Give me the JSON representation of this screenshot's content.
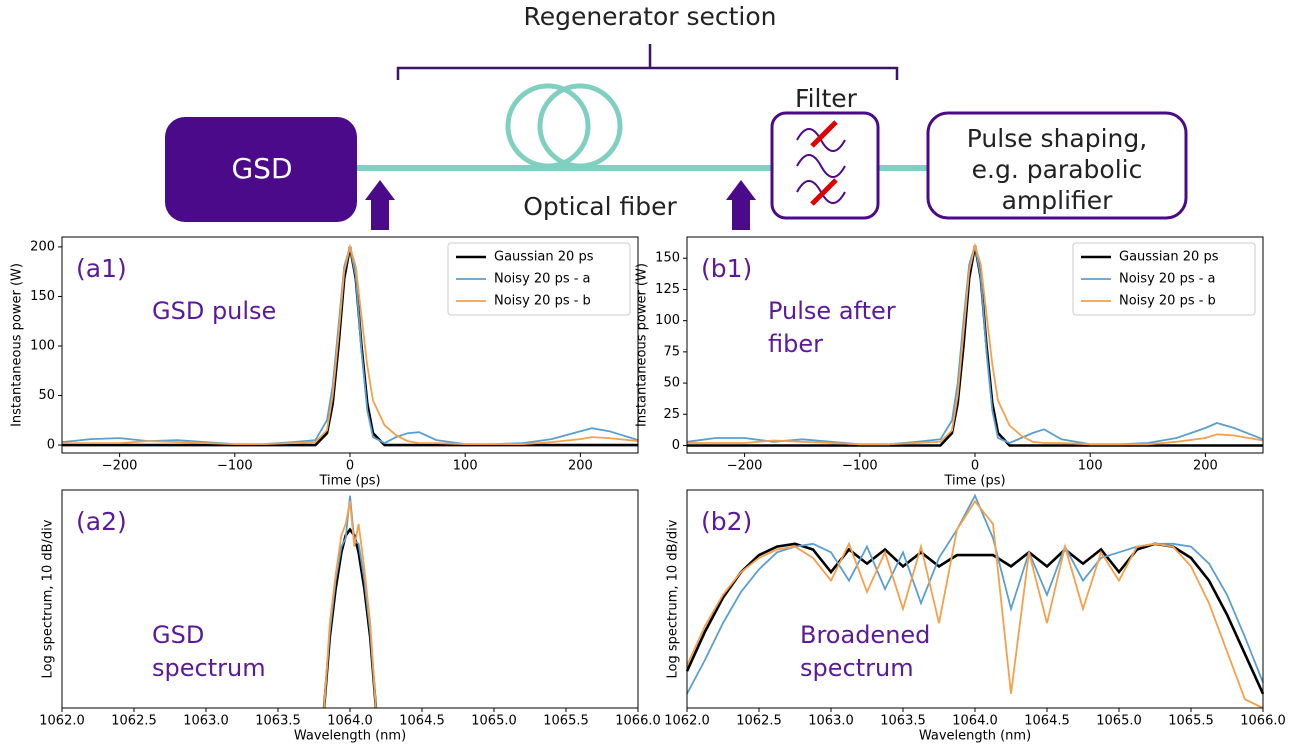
{
  "diagram": {
    "section": "Regenerator section",
    "source": "GSD",
    "filter": "Filter",
    "fiber": "Optical fiber",
    "shaper": [
      "Pulse shaping,",
      "e.g. parabolic",
      "amplifier"
    ]
  },
  "chart_data": [
    {
      "type": "line",
      "xlabel": "Time (ps)",
      "ylabel": "Instantaneous power (W)",
      "annotations": [
        "(a1)",
        "GSD pulse"
      ],
      "legend": "upper right",
      "xlim": [
        -250,
        250
      ],
      "ylim": [
        -8,
        210
      ],
      "xticks": [
        {
          "value": -200,
          "label": "−200"
        },
        {
          "value": -100,
          "label": "−100"
        },
        0,
        100,
        200
      ],
      "yticks": [
        0,
        50,
        100,
        150,
        200
      ],
      "x": [
        -250,
        -225,
        -200,
        -175,
        -150,
        -125,
        -100,
        -75,
        -50,
        -30,
        -20,
        -15,
        -10,
        -5,
        0,
        5,
        10,
        15,
        20,
        30,
        40,
        50,
        60,
        75,
        100,
        125,
        150,
        175,
        200,
        210,
        225,
        250
      ],
      "series": [
        {
          "name": "Gaussian 20 ps",
          "color": "#000000",
          "values": [
            0,
            0,
            0,
            0,
            0,
            0,
            0,
            0,
            0,
            0,
            12,
            42,
            100,
            168,
            200,
            168,
            100,
            42,
            12,
            0,
            0,
            0,
            0,
            0,
            0,
            0,
            0,
            0,
            0,
            0,
            0,
            0
          ]
        },
        {
          "name": "Noisy 20 ps - a",
          "color": "#5a9fd0",
          "values": [
            3,
            6,
            7,
            4,
            5,
            3,
            1,
            1,
            3,
            5,
            25,
            60,
            120,
            180,
            200,
            170,
            95,
            35,
            8,
            2,
            8,
            12,
            13,
            5,
            1,
            1,
            2,
            6,
            14,
            17,
            14,
            5
          ]
        },
        {
          "name": "Noisy 20 ps - b",
          "color": "#f5a04a",
          "values": [
            2,
            2,
            2,
            4,
            3,
            2,
            1,
            1,
            2,
            3,
            15,
            50,
            110,
            175,
            200,
            180,
            130,
            80,
            45,
            20,
            10,
            4,
            2,
            2,
            1,
            1,
            1,
            3,
            6,
            8,
            7,
            4
          ]
        }
      ]
    },
    {
      "type": "line",
      "xlabel": "Time (ps)",
      "ylabel": "Instantaneous power (W)",
      "annotations": [
        "(b1)",
        "Pulse after",
        "fiber"
      ],
      "legend": "upper right",
      "xlim": [
        -250,
        250
      ],
      "ylim": [
        -6,
        167
      ],
      "xticks": [
        {
          "value": -200,
          "label": "−200"
        },
        {
          "value": -100,
          "label": "−100"
        },
        0,
        100,
        200
      ],
      "yticks": [
        0,
        25,
        50,
        75,
        100,
        125,
        150
      ],
      "x": [
        -250,
        -225,
        -200,
        -175,
        -150,
        -125,
        -100,
        -75,
        -50,
        -30,
        -20,
        -15,
        -10,
        -5,
        0,
        5,
        10,
        15,
        20,
        30,
        40,
        50,
        60,
        75,
        100,
        125,
        150,
        175,
        200,
        210,
        225,
        250
      ],
      "series": [
        {
          "name": "Gaussian 20 ps",
          "color": "#000000",
          "values": [
            0,
            0,
            0,
            0,
            0,
            0,
            0,
            0,
            0,
            0,
            10,
            34,
            80,
            134,
            160,
            134,
            80,
            34,
            10,
            0,
            0,
            0,
            0,
            0,
            0,
            0,
            0,
            0,
            0,
            0,
            0,
            0
          ]
        },
        {
          "name": "Noisy 20 ps - a",
          "color": "#5a9fd0",
          "values": [
            3,
            6,
            6,
            3,
            5,
            3,
            1,
            1,
            3,
            5,
            20,
            50,
            100,
            145,
            160,
            135,
            75,
            28,
            6,
            2,
            6,
            10,
            13,
            5,
            1,
            1,
            2,
            6,
            14,
            18,
            14,
            5
          ]
        },
        {
          "name": "Noisy 20 ps - b",
          "color": "#f5a04a",
          "values": [
            2,
            2,
            2,
            4,
            3,
            2,
            1,
            1,
            2,
            3,
            12,
            40,
            90,
            140,
            160,
            145,
            105,
            65,
            36,
            16,
            8,
            3,
            2,
            2,
            1,
            1,
            1,
            3,
            6,
            9,
            8,
            4
          ]
        }
      ]
    },
    {
      "type": "line",
      "xlabel": "Wavelength (nm)",
      "ylabel": "Log spectrum, 10 dB/div",
      "annotations": [
        "(a2)",
        "GSD",
        "spectrum"
      ],
      "xlim": [
        1062,
        1066
      ],
      "ylim": [
        -75,
        2
      ],
      "xticks": [
        {
          "value": 1062,
          "label": "1062.0"
        },
        {
          "value": 1062.5,
          "label": "1062.5"
        },
        {
          "value": 1063,
          "label": "1063.0"
        },
        {
          "value": 1063.5,
          "label": "1063.5"
        },
        {
          "value": 1064,
          "label": "1064.0"
        },
        {
          "value": 1064.5,
          "label": "1064.5"
        },
        {
          "value": 1065,
          "label": "1065.0"
        },
        {
          "value": 1065.5,
          "label": "1065.5"
        },
        {
          "value": 1066,
          "label": "1066.0"
        }
      ],
      "x": [
        1063.82,
        1063.86,
        1063.9,
        1063.94,
        1063.97,
        1064.0,
        1064.03,
        1064.06,
        1064.1,
        1064.14,
        1064.18
      ],
      "series": [
        {
          "color": "#000000",
          "values": [
            -75,
            -50,
            -33,
            -20,
            -14,
            -12,
            -14,
            -20,
            -33,
            -50,
            -75
          ]
        },
        {
          "color": "#5a9fd0",
          "values": [
            -75,
            -48,
            -30,
            -18,
            -15,
            0,
            -16,
            -17,
            -30,
            -48,
            -75
          ]
        },
        {
          "color": "#f5a04a",
          "values": [
            -75,
            -45,
            -28,
            -14,
            -10,
            -2,
            -18,
            -10,
            -26,
            -45,
            -75
          ]
        }
      ]
    },
    {
      "type": "line",
      "xlabel": "Wavelength (nm)",
      "ylabel": "Log spectrum, 10 dB/div",
      "annotations": [
        "(b2)",
        "Broadened",
        "spectrum"
      ],
      "xlim": [
        1062,
        1066
      ],
      "ylim": [
        -75,
        2
      ],
      "xticks": [
        {
          "value": 1062,
          "label": "1062.0"
        },
        {
          "value": 1062.5,
          "label": "1062.5"
        },
        {
          "value": 1063,
          "label": "1063.0"
        },
        {
          "value": 1063.5,
          "label": "1063.5"
        },
        {
          "value": 1064,
          "label": "1064.0"
        },
        {
          "value": 1064.5,
          "label": "1064.5"
        },
        {
          "value": 1065,
          "label": "1065.0"
        },
        {
          "value": 1065.5,
          "label": "1065.5"
        },
        {
          "value": 1066,
          "label": "1066.0"
        }
      ],
      "x": [
        1062,
        1062.125,
        1062.25,
        1062.375,
        1062.5,
        1062.625,
        1062.75,
        1062.875,
        1063,
        1063.125,
        1063.25,
        1063.375,
        1063.5,
        1063.625,
        1063.75,
        1063.875,
        1064,
        1064.125,
        1064.25,
        1064.375,
        1064.5,
        1064.625,
        1064.75,
        1064.875,
        1065,
        1065.125,
        1065.25,
        1065.375,
        1065.5,
        1065.625,
        1065.75,
        1065.875,
        1066
      ],
      "series": [
        {
          "color": "#000000",
          "values": [
            -62,
            -48,
            -36,
            -27,
            -21,
            -18,
            -17,
            -19,
            -27,
            -19,
            -24,
            -19,
            -25,
            -20,
            -25,
            -21,
            -21,
            -21,
            -25,
            -20,
            -25,
            -19,
            -24,
            -19,
            -27,
            -19,
            -17,
            -18,
            -22,
            -30,
            -42,
            -56,
            -70
          ]
        },
        {
          "color": "#5a9fd0",
          "values": [
            -70,
            -58,
            -45,
            -34,
            -26,
            -20,
            -18,
            -17,
            -20,
            -30,
            -18,
            -33,
            -20,
            -38,
            -22,
            -12,
            0,
            -15,
            -40,
            -20,
            -35,
            -18,
            -30,
            -22,
            -20,
            -18,
            -17,
            -17,
            -18,
            -24,
            -35,
            -50,
            -66
          ]
        },
        {
          "color": "#f5a04a",
          "values": [
            -60,
            -46,
            -35,
            -27,
            -22,
            -19,
            -18,
            -22,
            -30,
            -17,
            -34,
            -20,
            -40,
            -18,
            -45,
            -12,
            -2,
            -10,
            -70,
            -20,
            -45,
            -18,
            -40,
            -20,
            -30,
            -18,
            -17,
            -18,
            -25,
            -38,
            -55,
            -72,
            -75
          ]
        }
      ]
    }
  ]
}
